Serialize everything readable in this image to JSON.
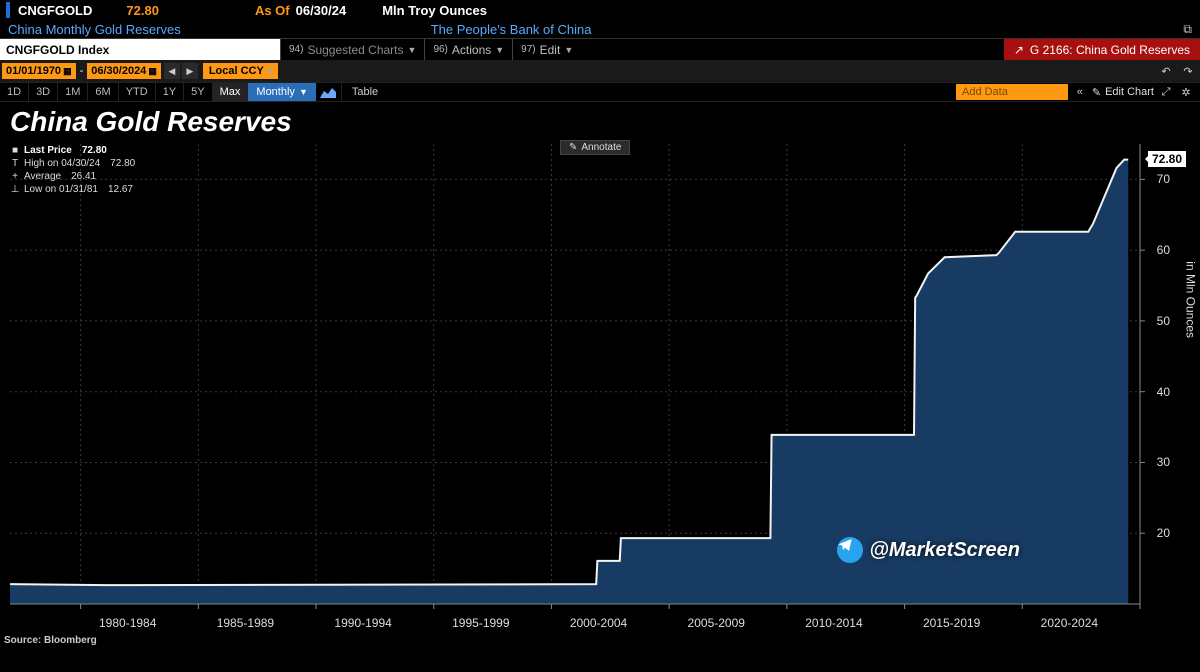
{
  "ticker_row": {
    "symbol": "CNGFGOLD",
    "price": "72.80",
    "asof_label": "As Of",
    "asof_date": "06/30/24",
    "unit": "Mln Troy Ounces"
  },
  "subtitle_row": {
    "series_name": "China Monthly Gold Reserves",
    "issuer": "The People's Bank of China"
  },
  "fnbar": {
    "index_label": "CNGFGOLD Index",
    "suggested": "Suggested Charts",
    "suggested_num": "94)",
    "actions": "Actions",
    "actions_num": "96)",
    "edit": "Edit",
    "edit_num": "97)",
    "right_label": "G 2166: China Gold Reserves"
  },
  "datebar": {
    "from": "01/01/1970",
    "to": "06/30/2024",
    "ccy": "Local CCY"
  },
  "periodbar": {
    "periods": [
      "1D",
      "3D",
      "1M",
      "6M",
      "YTD",
      "1Y",
      "5Y",
      "Max"
    ],
    "active_period": "Max",
    "interval": "Monthly",
    "table": "Table",
    "add_data": "Add Data",
    "edit_chart": "Edit Chart"
  },
  "chart": {
    "title": "China Gold Reserves",
    "annotate": "Annotate",
    "y_title": "in Mln Ounces",
    "source": "Source: Bloomberg",
    "last_value_flag": "72.80",
    "legend": {
      "header": "Last Price",
      "header_val": "72.80",
      "rows": [
        {
          "sym": "T",
          "label": "High on 04/30/24",
          "value": "72.80"
        },
        {
          "sym": "+",
          "label": "Average",
          "value": "26.41"
        },
        {
          "sym": "⊥",
          "label": "Low on 01/31/81",
          "value": "12.67"
        }
      ]
    },
    "style": {
      "background": "#000000",
      "grid_color": "#3a3a3a",
      "line_color": "#f3f3f3",
      "line_width": 2,
      "area_fill": "#173b63",
      "tick_color": "#dddddd",
      "tick_fontsize": 12
    },
    "y_axis": {
      "min": 10,
      "max": 75,
      "ticks": [
        20,
        30,
        40,
        50,
        60,
        70
      ]
    },
    "x_axis": {
      "min_year": 1977,
      "max_year": 2025,
      "group_labels": [
        {
          "label": "1980-1984",
          "year": 1982
        },
        {
          "label": "1985-1989",
          "year": 1987
        },
        {
          "label": "1990-1994",
          "year": 1992
        },
        {
          "label": "1995-1999",
          "year": 1997
        },
        {
          "label": "2000-2004",
          "year": 2002
        },
        {
          "label": "2005-2009",
          "year": 2007
        },
        {
          "label": "2010-2014",
          "year": 2012
        },
        {
          "label": "2015-2019",
          "year": 2017
        },
        {
          "label": "2020-2024",
          "year": 2022
        }
      ],
      "tick_years": [
        1980,
        1985,
        1990,
        1995,
        2000,
        2005,
        2010,
        2015,
        2020,
        2025
      ]
    },
    "series": [
      {
        "y": 1977.0,
        "v": 12.8
      },
      {
        "y": 1981.08,
        "v": 12.67
      },
      {
        "y": 2001.9,
        "v": 12.8
      },
      {
        "y": 2001.95,
        "v": 16.1
      },
      {
        "y": 2002.9,
        "v": 16.1
      },
      {
        "y": 2002.95,
        "v": 19.3
      },
      {
        "y": 2009.3,
        "v": 19.3
      },
      {
        "y": 2009.35,
        "v": 33.9
      },
      {
        "y": 2015.4,
        "v": 33.9
      },
      {
        "y": 2015.45,
        "v": 53.3
      },
      {
        "y": 2015.5,
        "v": 53.5
      },
      {
        "y": 2016.0,
        "v": 56.7
      },
      {
        "y": 2016.7,
        "v": 59.0
      },
      {
        "y": 2018.9,
        "v": 59.3
      },
      {
        "y": 2019.0,
        "v": 59.6
      },
      {
        "y": 2019.7,
        "v": 62.6
      },
      {
        "y": 2022.8,
        "v": 62.6
      },
      {
        "y": 2023.0,
        "v": 63.7
      },
      {
        "y": 2024.0,
        "v": 71.6
      },
      {
        "y": 2024.33,
        "v": 72.8
      },
      {
        "y": 2024.5,
        "v": 72.8
      }
    ]
  },
  "watermark": "@MarketScreen"
}
